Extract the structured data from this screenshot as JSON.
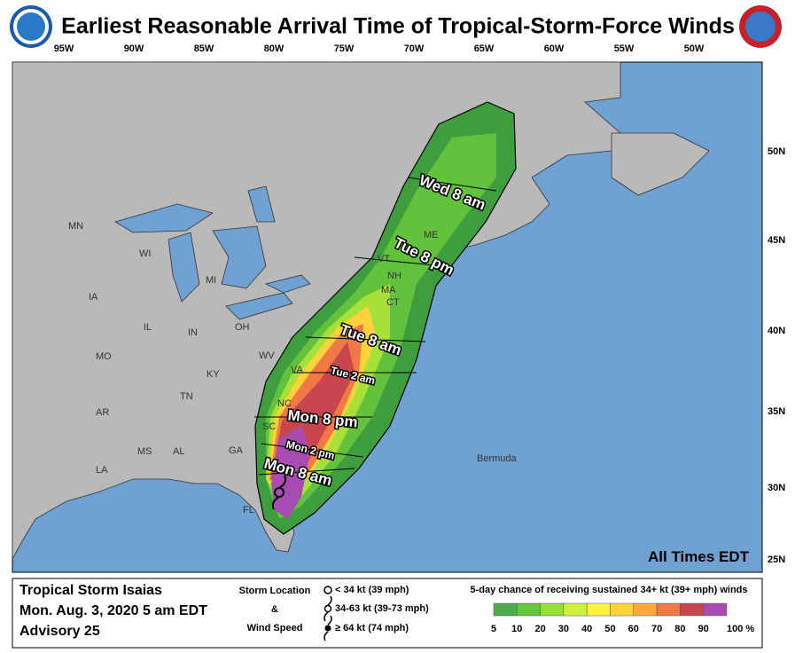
{
  "header": {
    "title": "Earliest Reasonable Arrival Time of Tropical-Storm-Force Winds"
  },
  "map": {
    "longitude_labels": [
      "95W",
      "90W",
      "85W",
      "80W",
      "75W",
      "70W",
      "65W",
      "60W",
      "55W",
      "50W"
    ],
    "latitude_labels": [
      "50N",
      "45N",
      "40N",
      "35N",
      "30N",
      "25N"
    ],
    "place_labels": [
      "MN",
      "WI",
      "MI",
      "IA",
      "IL",
      "IN",
      "OH",
      "MO",
      "KY",
      "WV",
      "VA",
      "TN",
      "AR",
      "NC",
      "SC",
      "MS",
      "AL",
      "GA",
      "LA",
      "FL",
      "ME",
      "VT",
      "NH",
      "MA",
      "CT",
      "Bermuda"
    ],
    "arrival_labels": [
      "Wed  8  am",
      "Tue  8  pm",
      "Tue  8  am",
      "Tue   2   am",
      "Mon  8  pm",
      "Mon   2   pm",
      "Mon  8  am"
    ],
    "note": "All Times EDT"
  },
  "info": {
    "storm": "Tropical Storm Isaias",
    "date": "Mon. Aug. 3, 2020  5 am EDT",
    "advisory": "Advisory 25"
  },
  "key": {
    "title_lines": [
      "Storm Location",
      "&",
      "Wind Speed"
    ],
    "items": [
      "< 34 kt (39 mph)",
      "34-63 kt (39-73 mph)",
      "≥ 64 kt (74 mph)"
    ]
  },
  "legend": {
    "title": "5-day chance of receiving sustained 34+ kt (39+ mph) winds",
    "labels": [
      "5",
      "10",
      "20",
      "30",
      "40",
      "50",
      "60",
      "70",
      "80",
      "90",
      "100 %"
    ],
    "colors": [
      "#4aac4a",
      "#64c83c",
      "#96e036",
      "#ccf23c",
      "#fff23c",
      "#ffd23c",
      "#ffa83c",
      "#f07a46",
      "#c8464e",
      "#a84cb4"
    ]
  }
}
